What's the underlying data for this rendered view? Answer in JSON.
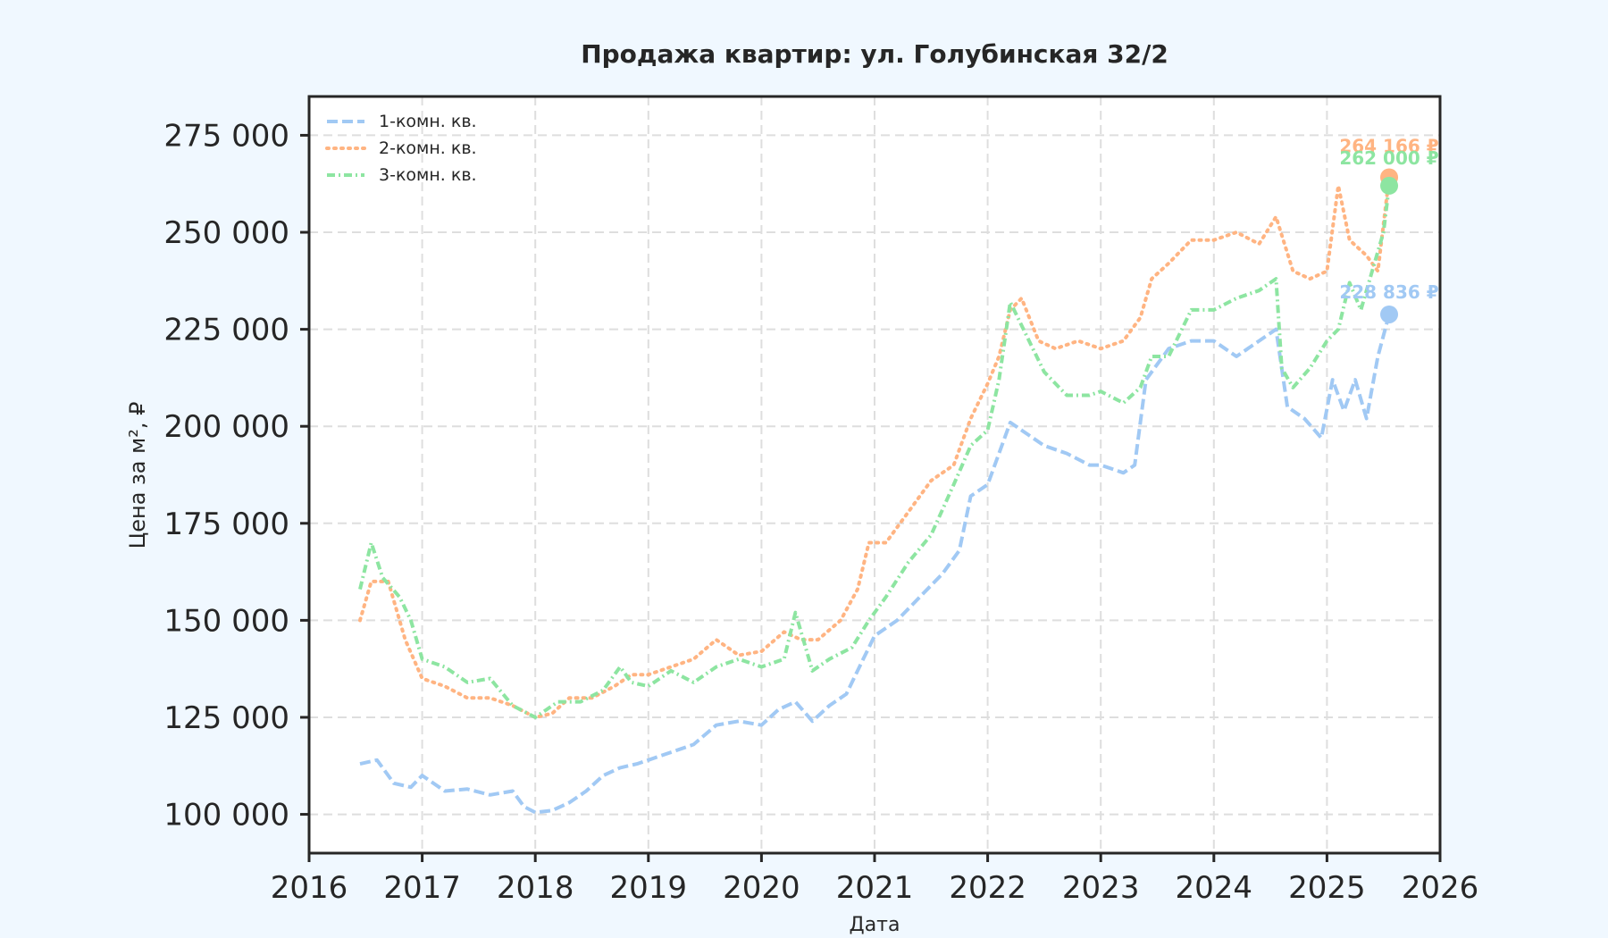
{
  "chart_data": {
    "type": "line",
    "title": "Продажа квартир: ул. Голубинская 32/2",
    "xlabel": "Дата",
    "ylabel": "Цена за м², ₽",
    "xlim": [
      2016.0,
      2026.0
    ],
    "ylim": [
      90000,
      285000
    ],
    "x_ticks": [
      2016,
      2017,
      2018,
      2019,
      2020,
      2021,
      2022,
      2023,
      2024,
      2025,
      2026
    ],
    "x_tick_labels": [
      "2016",
      "2017",
      "2018",
      "2019",
      "2020",
      "2021",
      "2022",
      "2023",
      "2024",
      "2025",
      "2026"
    ],
    "y_ticks": [
      100000,
      125000,
      150000,
      175000,
      200000,
      225000,
      250000,
      275000
    ],
    "y_tick_labels": [
      "100 000",
      "125 000",
      "150 000",
      "175 000",
      "200 000",
      "225 000",
      "250 000",
      "275 000"
    ],
    "grid": true,
    "legend_position": "top-left",
    "series": [
      {
        "name": "1-комн. кв.",
        "color": "#a1c9f4",
        "dash": "dashed",
        "last_label": "228 836 ₽",
        "last_value": 228836,
        "x": [
          2016.45,
          2016.6,
          2016.75,
          2016.9,
          2017.0,
          2017.2,
          2017.4,
          2017.6,
          2017.8,
          2017.9,
          2018.0,
          2018.15,
          2018.3,
          2018.45,
          2018.6,
          2018.75,
          2018.9,
          2019.0,
          2019.2,
          2019.4,
          2019.6,
          2019.8,
          2020.0,
          2020.15,
          2020.3,
          2020.45,
          2020.6,
          2020.75,
          2020.9,
          2021.0,
          2021.2,
          2021.4,
          2021.6,
          2021.75,
          2021.85,
          2022.0,
          2022.2,
          2022.35,
          2022.5,
          2022.7,
          2022.9,
          2023.0,
          2023.2,
          2023.3,
          2023.4,
          2023.6,
          2023.8,
          2024.0,
          2024.2,
          2024.4,
          2024.55,
          2024.65,
          2024.8,
          2024.95,
          2025.05,
          2025.15,
          2025.25,
          2025.35,
          2025.45,
          2025.55
        ],
        "y": [
          113000,
          114000,
          108000,
          107000,
          110000,
          106000,
          106500,
          105000,
          106000,
          102000,
          100500,
          101000,
          103000,
          106000,
          110000,
          112000,
          113000,
          114000,
          116000,
          118000,
          123000,
          124000,
          123000,
          127000,
          129000,
          124000,
          128000,
          131000,
          140000,
          146000,
          150000,
          156000,
          162000,
          168000,
          182000,
          185000,
          201000,
          198000,
          195000,
          193000,
          190000,
          190000,
          188000,
          190000,
          212000,
          220000,
          222000,
          222000,
          218000,
          222000,
          225000,
          205000,
          202000,
          197000,
          212000,
          204000,
          212000,
          202000,
          218000,
          228836
        ]
      },
      {
        "name": "2-комн. кв.",
        "color": "#ffb482",
        "dash": "dotted",
        "last_label": "264 166 ₽",
        "last_value": 264166,
        "x": [
          2016.45,
          2016.55,
          2016.7,
          2016.85,
          2017.0,
          2017.2,
          2017.4,
          2017.6,
          2017.8,
          2018.0,
          2018.15,
          2018.3,
          2018.5,
          2018.7,
          2018.85,
          2019.0,
          2019.2,
          2019.4,
          2019.6,
          2019.8,
          2020.0,
          2020.2,
          2020.35,
          2020.5,
          2020.7,
          2020.85,
          2020.95,
          2021.1,
          2021.3,
          2021.5,
          2021.7,
          2021.85,
          2022.0,
          2022.1,
          2022.2,
          2022.3,
          2022.45,
          2022.6,
          2022.8,
          2023.0,
          2023.2,
          2023.35,
          2023.45,
          2023.6,
          2023.8,
          2024.0,
          2024.2,
          2024.4,
          2024.55,
          2024.7,
          2024.85,
          2025.0,
          2025.1,
          2025.2,
          2025.35,
          2025.45,
          2025.55
        ],
        "y": [
          150000,
          160000,
          160000,
          145000,
          135000,
          133000,
          130000,
          130000,
          128000,
          125000,
          126000,
          130000,
          130000,
          133000,
          136000,
          136000,
          138000,
          140000,
          145000,
          141000,
          142000,
          147000,
          145000,
          145000,
          150000,
          158000,
          170000,
          170000,
          178000,
          186000,
          190000,
          202000,
          211000,
          218000,
          230000,
          233000,
          222000,
          220000,
          222000,
          220000,
          222000,
          228000,
          238000,
          242000,
          248000,
          248000,
          250000,
          247000,
          254000,
          240000,
          238000,
          240000,
          262000,
          248000,
          244000,
          240000,
          264166
        ]
      },
      {
        "name": "3-комн. кв.",
        "color": "#8de5a1",
        "dash": "dash-dot",
        "last_label": "262 000 ₽",
        "last_value": 262000,
        "x": [
          2016.45,
          2016.55,
          2016.65,
          2016.8,
          2016.9,
          2017.0,
          2017.2,
          2017.4,
          2017.6,
          2017.8,
          2018.0,
          2018.2,
          2018.4,
          2018.6,
          2018.75,
          2018.85,
          2019.0,
          2019.2,
          2019.4,
          2019.6,
          2019.8,
          2020.0,
          2020.2,
          2020.3,
          2020.45,
          2020.6,
          2020.8,
          2020.95,
          2021.1,
          2021.3,
          2021.5,
          2021.7,
          2021.85,
          2022.0,
          2022.1,
          2022.2,
          2022.35,
          2022.5,
          2022.7,
          2022.9,
          2023.0,
          2023.2,
          2023.35,
          2023.45,
          2023.6,
          2023.8,
          2024.0,
          2024.2,
          2024.4,
          2024.55,
          2024.6,
          2024.7,
          2024.85,
          2025.0,
          2025.1,
          2025.2,
          2025.3,
          2025.4,
          2025.5,
          2025.55
        ],
        "y": [
          158000,
          170000,
          161000,
          156000,
          150000,
          140000,
          138000,
          134000,
          135000,
          128000,
          125000,
          129000,
          129000,
          132000,
          138000,
          134000,
          133000,
          137000,
          134000,
          138000,
          140000,
          138000,
          140000,
          152000,
          137000,
          140000,
          143000,
          150000,
          156000,
          165000,
          172000,
          185000,
          195000,
          199000,
          212000,
          232000,
          223000,
          214000,
          208000,
          208000,
          209000,
          206000,
          210000,
          218000,
          218000,
          230000,
          230000,
          233000,
          235000,
          238000,
          215000,
          210000,
          215000,
          222000,
          225000,
          237000,
          230000,
          240000,
          250000,
          262000
        ]
      }
    ]
  }
}
